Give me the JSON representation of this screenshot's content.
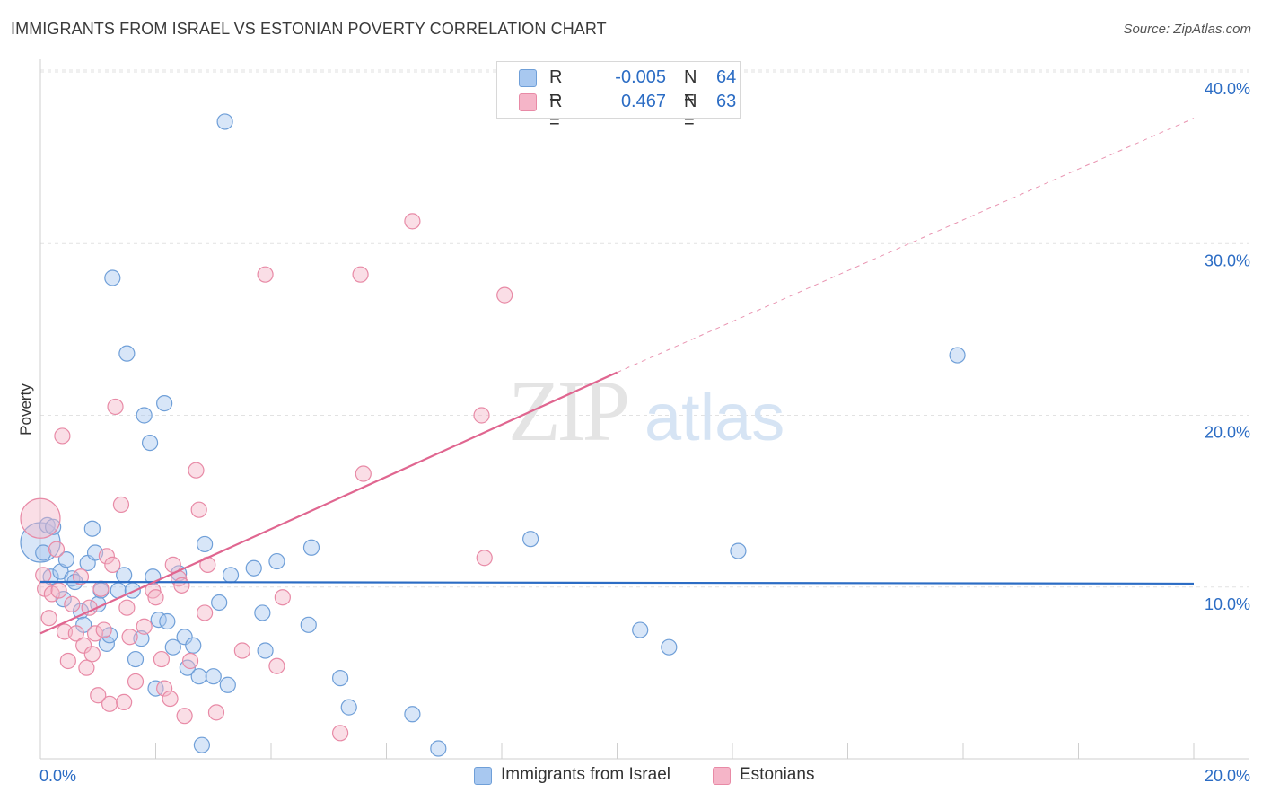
{
  "header": {
    "title": "IMMIGRANTS FROM ISRAEL VS ESTONIAN POVERTY CORRELATION CHART",
    "source": "Source: ZipAtlas.com"
  },
  "watermark": {
    "zip": "ZIP",
    "atlas": "atlas"
  },
  "stats": [
    {
      "r_label": "R =",
      "r_value": "-0.005",
      "n_label": "N =",
      "n_value": "64",
      "color": "#a8c8f0"
    },
    {
      "r_label": "R =",
      "r_value": "0.467",
      "n_label": "N =",
      "n_value": "63",
      "color": "#f5b5c8"
    }
  ],
  "colors": {
    "blue_fill": "#a8c8f0",
    "blue_stroke": "#6f9fd8",
    "blue_line": "#2b6cc4",
    "pink_fill": "#f5b5c8",
    "pink_stroke": "#e88aa6",
    "pink_line": "#e06690",
    "tick_label": "#2b6cc4"
  },
  "chart_data": {
    "type": "scatter",
    "ylabel": "Poverty",
    "xlim": [
      0,
      20
    ],
    "ylim": [
      0,
      40
    ],
    "x_tick_labels": [
      "0.0%",
      "20.0%"
    ],
    "y_ticks": [
      10,
      20,
      30,
      40
    ],
    "y_tick_labels": [
      "10.0%",
      "20.0%",
      "30.0%",
      "40.0%"
    ],
    "grid": true,
    "legend_position": "top-center",
    "series": [
      {
        "name": "Immigrants from Israel",
        "trend": {
          "x": [
            0,
            20
          ],
          "y": [
            10.3,
            10.2
          ],
          "style": "solid"
        },
        "points": [
          [
            0.05,
            12.0
          ],
          [
            0.12,
            13.6
          ],
          [
            0.18,
            10.6
          ],
          [
            0.22,
            13.5
          ],
          [
            0.35,
            10.9
          ],
          [
            0.4,
            9.3
          ],
          [
            0.45,
            11.6
          ],
          [
            0.55,
            10.5
          ],
          [
            0.6,
            10.3
          ],
          [
            0.7,
            8.6
          ],
          [
            0.75,
            7.8
          ],
          [
            0.82,
            11.4
          ],
          [
            0.9,
            13.4
          ],
          [
            0.95,
            12.0
          ],
          [
            1.0,
            9.0
          ],
          [
            1.05,
            9.8
          ],
          [
            1.15,
            6.7
          ],
          [
            1.2,
            7.2
          ],
          [
            1.25,
            28.0
          ],
          [
            1.35,
            9.8
          ],
          [
            1.45,
            10.7
          ],
          [
            1.5,
            23.6
          ],
          [
            1.6,
            9.8
          ],
          [
            1.65,
            5.8
          ],
          [
            1.75,
            7.0
          ],
          [
            1.8,
            20.0
          ],
          [
            1.9,
            18.4
          ],
          [
            1.95,
            10.6
          ],
          [
            2.0,
            4.1
          ],
          [
            2.05,
            8.1
          ],
          [
            2.15,
            20.7
          ],
          [
            2.2,
            8.0
          ],
          [
            2.3,
            6.5
          ],
          [
            2.4,
            10.8
          ],
          [
            2.5,
            7.1
          ],
          [
            2.55,
            5.3
          ],
          [
            2.65,
            6.6
          ],
          [
            2.75,
            4.8
          ],
          [
            2.8,
            0.8
          ],
          [
            2.85,
            12.5
          ],
          [
            3.0,
            4.8
          ],
          [
            3.1,
            9.1
          ],
          [
            3.2,
            37.1
          ],
          [
            3.25,
            4.3
          ],
          [
            3.3,
            10.7
          ],
          [
            3.7,
            11.1
          ],
          [
            3.85,
            8.5
          ],
          [
            3.9,
            6.3
          ],
          [
            4.1,
            11.5
          ],
          [
            4.65,
            7.8
          ],
          [
            4.7,
            12.3
          ],
          [
            5.2,
            4.7
          ],
          [
            5.35,
            3.0
          ],
          [
            6.45,
            2.6
          ],
          [
            6.9,
            0.6
          ],
          [
            8.5,
            12.8
          ],
          [
            10.4,
            7.5
          ],
          [
            10.9,
            6.5
          ],
          [
            12.1,
            12.1
          ],
          [
            15.9,
            23.5
          ]
        ],
        "marker_size": "normal",
        "large_points": [
          [
            0.0,
            12.6
          ]
        ]
      },
      {
        "name": "Estonians",
        "trend": {
          "x": [
            0,
            10.0
          ],
          "y": [
            7.3,
            22.5
          ],
          "style": "solid",
          "extended_to": [
            20,
            37.3
          ],
          "extended_style": "dashed"
        },
        "points": [
          [
            0.05,
            10.7
          ],
          [
            0.08,
            9.9
          ],
          [
            0.15,
            8.2
          ],
          [
            0.2,
            9.6
          ],
          [
            0.28,
            12.2
          ],
          [
            0.32,
            9.8
          ],
          [
            0.38,
            18.8
          ],
          [
            0.42,
            7.4
          ],
          [
            0.48,
            5.7
          ],
          [
            0.55,
            9.0
          ],
          [
            0.62,
            7.3
          ],
          [
            0.7,
            10.6
          ],
          [
            0.75,
            6.6
          ],
          [
            0.8,
            5.3
          ],
          [
            0.85,
            8.8
          ],
          [
            0.9,
            6.1
          ],
          [
            0.95,
            7.3
          ],
          [
            1.0,
            3.7
          ],
          [
            1.05,
            9.9
          ],
          [
            1.1,
            7.5
          ],
          [
            1.15,
            11.8
          ],
          [
            1.2,
            3.2
          ],
          [
            1.25,
            11.3
          ],
          [
            1.3,
            20.5
          ],
          [
            1.4,
            14.8
          ],
          [
            1.45,
            3.3
          ],
          [
            1.5,
            8.8
          ],
          [
            1.55,
            7.1
          ],
          [
            1.65,
            4.5
          ],
          [
            1.8,
            7.7
          ],
          [
            1.95,
            9.8
          ],
          [
            2.0,
            9.4
          ],
          [
            2.1,
            5.8
          ],
          [
            2.15,
            4.1
          ],
          [
            2.25,
            3.5
          ],
          [
            2.3,
            11.3
          ],
          [
            2.4,
            10.5
          ],
          [
            2.45,
            10.1
          ],
          [
            2.5,
            2.5
          ],
          [
            2.6,
            5.7
          ],
          [
            2.7,
            16.8
          ],
          [
            2.75,
            14.5
          ],
          [
            2.85,
            8.5
          ],
          [
            2.9,
            11.3
          ],
          [
            3.05,
            2.7
          ],
          [
            3.5,
            6.3
          ],
          [
            3.9,
            28.2
          ],
          [
            4.1,
            5.4
          ],
          [
            4.2,
            9.4
          ],
          [
            5.2,
            1.5
          ],
          [
            5.55,
            28.2
          ],
          [
            5.6,
            16.6
          ],
          [
            6.45,
            31.3
          ],
          [
            7.65,
            20.0
          ],
          [
            7.7,
            11.7
          ],
          [
            8.05,
            27.0
          ]
        ],
        "marker_size": "normal",
        "large_points": [
          [
            0.0,
            14.0
          ]
        ]
      }
    ]
  }
}
